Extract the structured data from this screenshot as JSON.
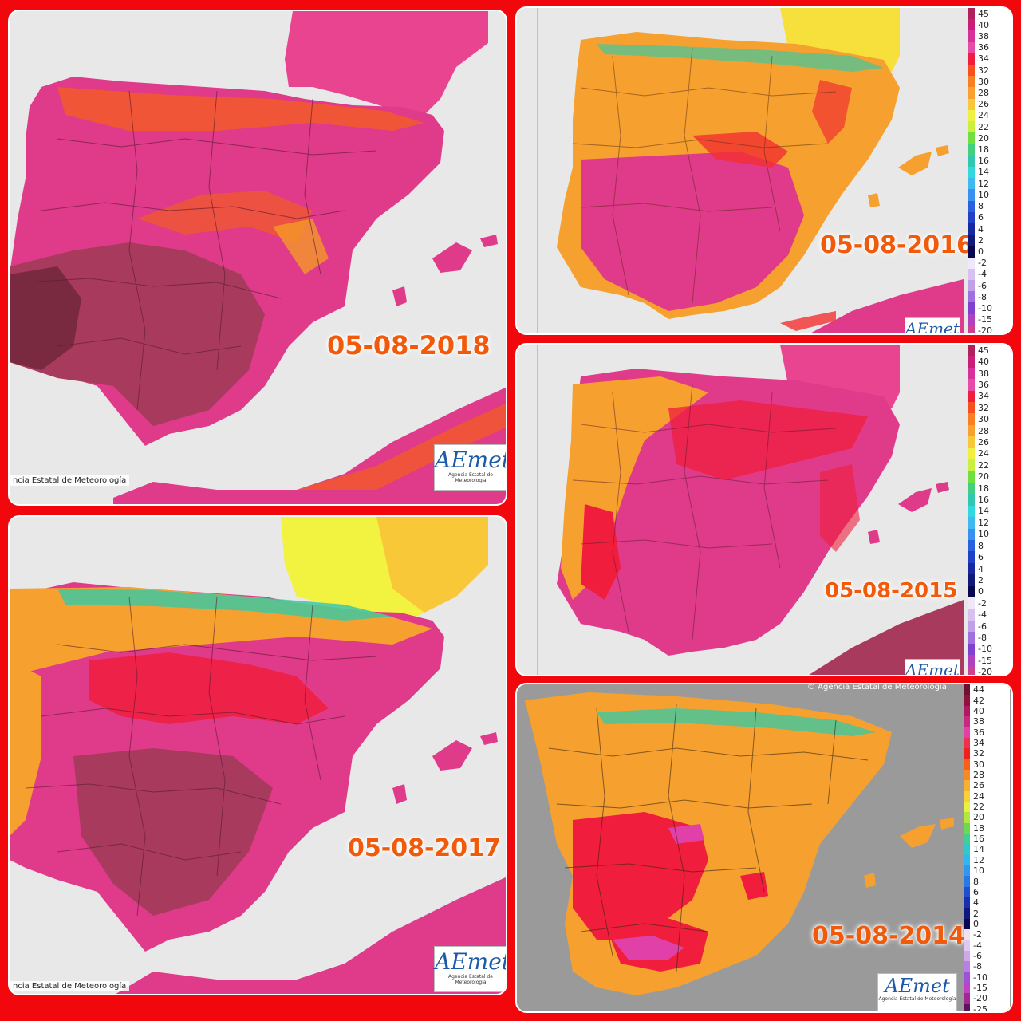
{
  "panels": [
    {
      "key": "p2018",
      "date": "05-08-2018",
      "credit": "ncia Estatal de Meteorología",
      "logo_brand": "AEmet",
      "logo_sub": "Agencia Estatal de Meteorología"
    },
    {
      "key": "p2016",
      "date": "05-08-2016",
      "logo_brand": "AEmet"
    },
    {
      "key": "p2015",
      "date": "05-08-2015",
      "logo_brand": "AEmet"
    },
    {
      "key": "p2017",
      "date": "05-08-2017",
      "credit": "ncia Estatal de Meteorología",
      "logo_brand": "AEmet",
      "logo_sub": "Agencia Estatal de Meteorología"
    },
    {
      "key": "p2014",
      "date": "05-08-2014",
      "credit_top": "© Agencia Estatal de Meteorología",
      "logo_brand": "AEmet",
      "logo_sub": "Agencia Estatal de Meteorología"
    }
  ],
  "legend_a": {
    "values": [
      "45",
      "40",
      "38",
      "36",
      "34",
      "32",
      "30",
      "28",
      "26",
      "24",
      "22",
      "20",
      "18",
      "16",
      "14",
      "12",
      "10",
      "8",
      "6",
      "4",
      "2",
      "0",
      "-2",
      "-4",
      "-6",
      "-8",
      "-10",
      "-15",
      "-20"
    ],
    "colors": [
      "#b0205a",
      "#c81e78",
      "#d8309a",
      "#e84aa8",
      "#f01e3c",
      "#f8501c",
      "#f88020",
      "#f8a030",
      "#f8c83c",
      "#f0f040",
      "#c8f040",
      "#70e040",
      "#40d080",
      "#30c8b0",
      "#30d8e0",
      "#40b8f0",
      "#3890f0",
      "#2860e0",
      "#2040c8",
      "#1828a0",
      "#101878",
      "#080850",
      "#f0e8f8",
      "#d8c0f0",
      "#c0a0e8",
      "#a070e0",
      "#8040d0",
      "#b040c0",
      "#d04090"
    ]
  },
  "legend_b": {
    "values": [
      "44",
      "42",
      "40",
      "38",
      "36",
      "34",
      "32",
      "30",
      "28",
      "26",
      "24",
      "22",
      "20",
      "18",
      "16",
      "14",
      "12",
      "10",
      "8",
      "6",
      "4",
      "2",
      "0",
      "-2",
      "-4",
      "-6",
      "-8",
      "-10",
      "-15",
      "-20",
      "-25"
    ],
    "colors": [
      "#701030",
      "#901040",
      "#b01860",
      "#c82880",
      "#e040a8",
      "#f03050",
      "#f0201c",
      "#f86018",
      "#f88828",
      "#f8b030",
      "#f8d038",
      "#e8f040",
      "#b0e840",
      "#70d850",
      "#40d090",
      "#30c8c8",
      "#30b8f0",
      "#3098f0",
      "#2878e8",
      "#2050d0",
      "#1830b0",
      "#101880",
      "#080850",
      "#f0e0f0",
      "#e0c8f0",
      "#d0a8e8",
      "#b880e0",
      "#a050d8",
      "#c040c8",
      "#a02890",
      "#601060"
    ]
  }
}
